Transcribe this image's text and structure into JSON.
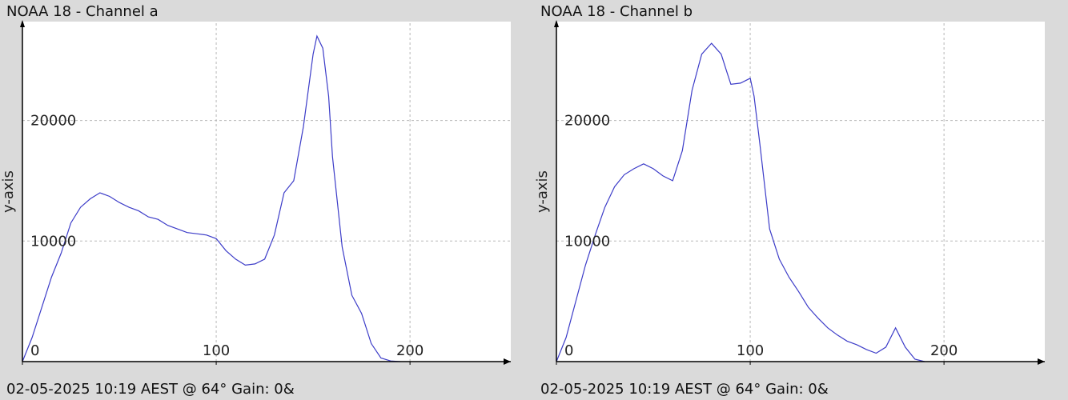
{
  "charts": [
    {
      "title": "NOAA 18 - Channel a",
      "footer": "02-05-2025 10:19 AEST @ 64° Gain: 0&",
      "ylabel": "y-axis"
    },
    {
      "title": "NOAA 18 - Channel b",
      "footer": "02-05-2025 10:19 AEST @ 64° Gain: 0&",
      "ylabel": "y-axis"
    }
  ],
  "chart_data": [
    {
      "type": "line",
      "title": "NOAA 18 - Channel a",
      "xlabel": "",
      "ylabel": "y-axis",
      "xlim": [
        0,
        252
      ],
      "ylim": [
        0,
        28200
      ],
      "xticks": [
        0,
        100,
        200
      ],
      "yticks": [
        10000,
        20000
      ],
      "grid": true,
      "color": "#3c3cc8",
      "x": [
        0,
        5,
        10,
        15,
        20,
        25,
        30,
        35,
        40,
        45,
        50,
        55,
        60,
        65,
        70,
        75,
        80,
        85,
        90,
        95,
        100,
        105,
        110,
        115,
        120,
        125,
        130,
        135,
        140,
        145,
        150,
        152,
        155,
        158,
        160,
        165,
        170,
        175,
        180,
        185,
        190,
        195
      ],
      "y": [
        0,
        2000,
        4500,
        7000,
        9000,
        11500,
        12800,
        13500,
        14000,
        13700,
        13200,
        12800,
        12500,
        12000,
        11800,
        11300,
        11000,
        10700,
        10600,
        10500,
        10200,
        9200,
        8500,
        8000,
        8100,
        8500,
        10500,
        14000,
        15000,
        19500,
        25500,
        27000,
        26000,
        22000,
        17000,
        9500,
        5500,
        4000,
        1500,
        300,
        50,
        0
      ]
    },
    {
      "type": "line",
      "title": "NOAA 18 - Channel b",
      "xlabel": "",
      "ylabel": "y-axis",
      "xlim": [
        0,
        252
      ],
      "ylim": [
        0,
        28200
      ],
      "xticks": [
        0,
        100,
        200
      ],
      "yticks": [
        10000,
        20000
      ],
      "grid": true,
      "color": "#3c3cc8",
      "x": [
        0,
        5,
        10,
        15,
        20,
        25,
        30,
        35,
        40,
        45,
        50,
        55,
        60,
        65,
        70,
        75,
        80,
        85,
        88,
        90,
        95,
        100,
        102,
        105,
        110,
        115,
        120,
        125,
        130,
        135,
        140,
        145,
        150,
        155,
        160,
        165,
        170,
        175,
        180,
        185,
        190
      ],
      "y": [
        0,
        2000,
        5000,
        8000,
        10500,
        12800,
        14500,
        15500,
        16000,
        16400,
        16000,
        15400,
        15000,
        17500,
        22500,
        25500,
        26400,
        25500,
        24000,
        23000,
        23100,
        23500,
        22000,
        18000,
        11000,
        8500,
        7000,
        5800,
        4500,
        3600,
        2800,
        2200,
        1700,
        1400,
        1000,
        700,
        1200,
        2800,
        1200,
        200,
        0
      ]
    }
  ]
}
